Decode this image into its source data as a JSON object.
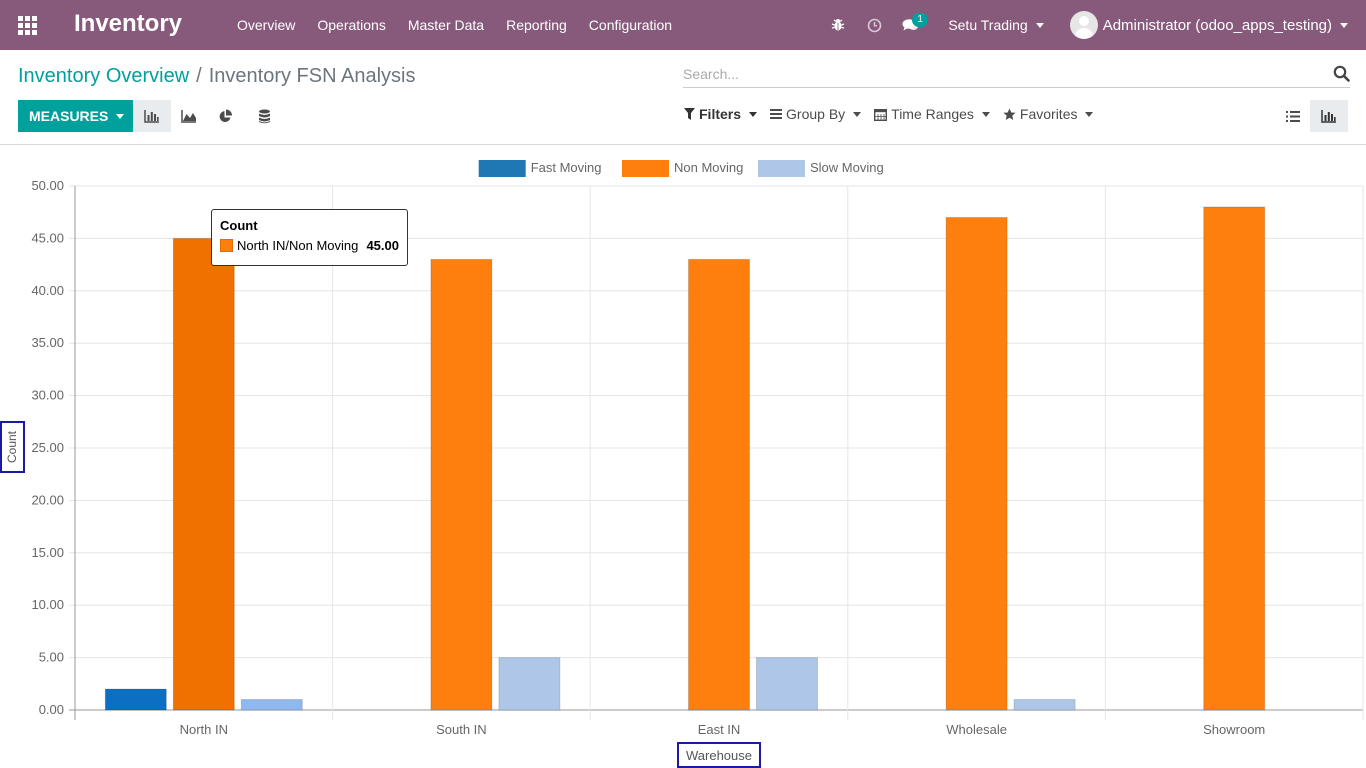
{
  "topbar": {
    "app_title": "Inventory",
    "menu": [
      "Overview",
      "Operations",
      "Master Data",
      "Reporting",
      "Configuration"
    ],
    "chat_badge": "1",
    "company": "Setu Trading",
    "user": "Administrator (odoo_apps_testing)"
  },
  "control_panel": {
    "breadcrumb_parent": "Inventory Overview",
    "breadcrumb_sep": "/",
    "breadcrumb_current": "Inventory FSN Analysis",
    "search_placeholder": "Search...",
    "measures_label": "MEASURES",
    "filters_label": "Filters",
    "groupby_label": "Group By",
    "timeranges_label": "Time Ranges",
    "favorites_label": "Favorites"
  },
  "tooltip": {
    "title": "Count",
    "label": "North IN/Non Moving",
    "value": "45.00"
  },
  "chart_data": {
    "type": "bar",
    "categories": [
      "North IN",
      "South IN",
      "East IN",
      "Wholesale",
      "Showroom"
    ],
    "series": [
      {
        "name": "Fast Moving",
        "color": "#1f77b4",
        "values": [
          2,
          0,
          0,
          0,
          0
        ]
      },
      {
        "name": "Non Moving",
        "color": "#ff7f0e",
        "values": [
          45,
          43,
          43,
          47,
          48
        ]
      },
      {
        "name": "Slow Moving",
        "color": "#aec7e8",
        "values": [
          1,
          5,
          5,
          1,
          0
        ]
      }
    ],
    "ylabel": "Count",
    "xlabel": "Warehouse",
    "ylim": [
      0,
      50
    ],
    "yticks": [
      "0.00",
      "5.00",
      "10.00",
      "15.00",
      "20.00",
      "25.00",
      "30.00",
      "35.00",
      "40.00",
      "45.00",
      "50.00"
    ],
    "legend_position": "top-center",
    "grid": true
  }
}
